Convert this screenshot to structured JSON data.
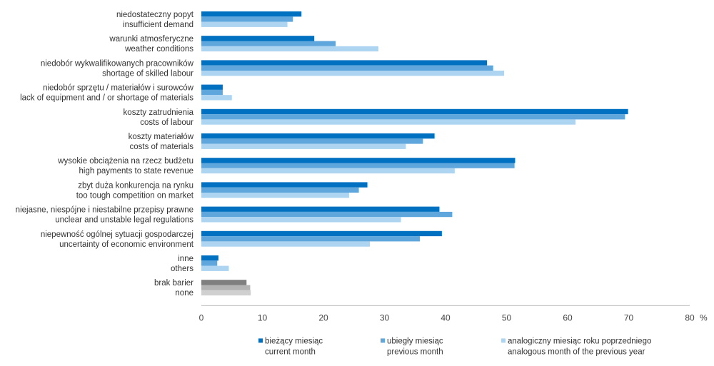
{
  "chart_data": {
    "type": "bar",
    "orientation": "horizontal",
    "title": "",
    "xlabel": "",
    "ylabel": "",
    "unit": "%",
    "xlim": [
      0,
      80
    ],
    "x_ticks": [
      "0",
      "10",
      "20",
      "30",
      "40",
      "50",
      "60",
      "70",
      "80"
    ],
    "grid": false,
    "legend_position": "bottom",
    "categories": [
      {
        "pl": "niedostateczny popyt",
        "en": "insufficient demand"
      },
      {
        "pl": "warunki atmosferyczne",
        "en": "weather conditions"
      },
      {
        "pl": "niedobór wykwalifikowanych pracowników",
        "en": "shortage of skilled labour"
      },
      {
        "pl": "niedobór sprzętu / materiałów i surowców",
        "en": "lack of equipment and / or shortage of materials"
      },
      {
        "pl": "koszty zatrudnienia",
        "en": "costs of labour"
      },
      {
        "pl": "koszty materiałów",
        "en": "costs of materials"
      },
      {
        "pl": "wysokie obciążenia na rzecz budżetu",
        "en": "high payments to state revenue"
      },
      {
        "pl": "zbyt duża konkurencja na rynku",
        "en": "too tough competition on market"
      },
      {
        "pl": "niejasne, niespójne i niestabilne przepisy prawne",
        "en": "unclear and unstable legal regulations"
      },
      {
        "pl": "niepewność ogólnej sytuacji gospodarczej",
        "en": "uncertainty of economic environment"
      },
      {
        "pl": "inne",
        "en": "others"
      },
      {
        "pl": "brak barier",
        "en": "none"
      }
    ],
    "series": [
      {
        "name_pl": "bieżący miesiąc",
        "name_en": "current month",
        "color": "#0070c0",
        "values": [
          16.4,
          18.5,
          46.8,
          3.5,
          69.9,
          38.2,
          51.4,
          27.2,
          39.0,
          39.4,
          2.8,
          7.4
        ]
      },
      {
        "name_pl": "ubiegły miesiąc",
        "name_en": "previous month",
        "color": "#5fa6dc",
        "values": [
          15.0,
          22.0,
          47.8,
          3.5,
          69.4,
          36.3,
          51.3,
          25.8,
          41.1,
          35.8,
          2.6,
          8.0
        ]
      },
      {
        "name_pl": "analogiczny miesiąc roku poprzedniego",
        "name_en": "analogous month of the previous year",
        "color": "#add4f1",
        "values": [
          14.1,
          29.0,
          49.6,
          5.0,
          61.3,
          33.5,
          41.5,
          24.2,
          32.7,
          27.6,
          4.5,
          8.1
        ]
      }
    ],
    "highlight_category_index": 11,
    "highlight_colors": [
      "#7f7f7f",
      "#b3b3b3",
      "#d0d0d0"
    ]
  }
}
